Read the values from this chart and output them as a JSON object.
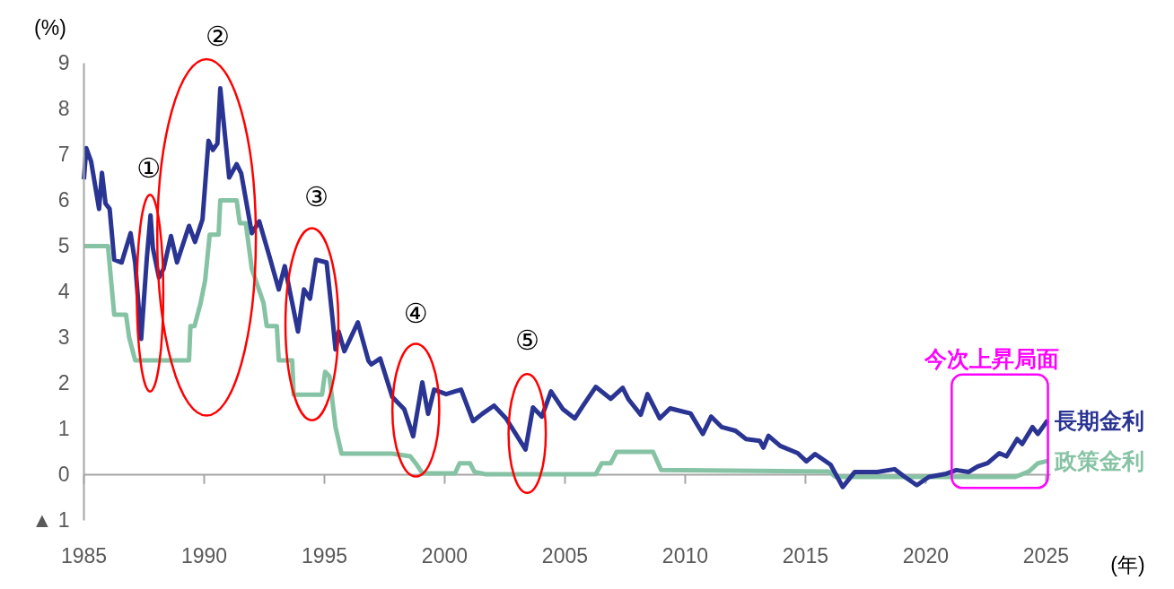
{
  "chart_data": {
    "type": "line",
    "xlabel": "(年)",
    "ylabel": "(%)",
    "xlim": [
      1985,
      2025.2
    ],
    "ylim": [
      -1,
      9
    ],
    "xticks": [
      1985,
      1990,
      1995,
      2000,
      2005,
      2010,
      2015,
      2020,
      2025
    ],
    "yticks": [
      {
        "value": -1,
        "label": "▲ 1"
      },
      0,
      1,
      2,
      3,
      4,
      5,
      6,
      7,
      8,
      9
    ],
    "grid": false,
    "legend": false,
    "ref_lines": [
      {
        "axis": "y",
        "value": 0,
        "label": null,
        "color": "#a6a6a6"
      }
    ],
    "annotations": [
      "①",
      "②",
      "③",
      "④",
      "⑤",
      "今次上昇局面"
    ],
    "series": [
      {
        "name": "長期金利",
        "color": "#2a3593",
        "x": [
          1985.0,
          1985.1,
          1985.3,
          1985.63,
          1985.75,
          1985.9,
          1986.07,
          1986.26,
          1986.57,
          1986.94,
          1987.13,
          1987.38,
          1987.62,
          1987.77,
          1987.87,
          1988.12,
          1988.31,
          1988.62,
          1988.87,
          1989.37,
          1989.62,
          1989.93,
          1990.18,
          1990.36,
          1990.55,
          1990.67,
          1991.04,
          1991.35,
          1991.54,
          1991.85,
          1991.98,
          1992.29,
          1992.72,
          1993.1,
          1993.35,
          1993.9,
          1994.15,
          1994.4,
          1994.65,
          1995.09,
          1995.34,
          1995.46,
          1995.59,
          1995.83,
          1996.39,
          1996.83,
          1996.95,
          1997.32,
          1997.82,
          1998.32,
          1998.69,
          1999.07,
          1999.31,
          1999.56,
          2000.06,
          2000.68,
          2001.18,
          2001.56,
          2002.05,
          2002.55,
          2003.36,
          2003.67,
          2004.04,
          2004.42,
          2004.92,
          2005.41,
          2005.78,
          2006.28,
          2006.9,
          2007.4,
          2007.65,
          2008.15,
          2008.43,
          2008.94,
          2009.37,
          2010.22,
          2010.73,
          2011.08,
          2011.52,
          2012.09,
          2012.53,
          2013.1,
          2013.25,
          2013.46,
          2013.95,
          2014.68,
          2015.04,
          2015.4,
          2016.04,
          2016.55,
          2017.05,
          2017.98,
          2018.7,
          2019.13,
          2019.63,
          2020.13,
          2020.85,
          2021.27,
          2021.79,
          2022.15,
          2022.57,
          2023.06,
          2023.36,
          2023.8,
          2024.01,
          2024.44,
          2024.66,
          2025.07
        ],
        "values": [
          6.46,
          7.14,
          6.85,
          5.81,
          6.6,
          5.93,
          5.81,
          4.7,
          4.64,
          5.28,
          4.64,
          2.97,
          4.76,
          5.67,
          4.95,
          4.31,
          4.5,
          5.22,
          4.64,
          5.44,
          5.09,
          5.58,
          7.3,
          7.1,
          7.24,
          8.45,
          6.5,
          6.79,
          6.59,
          5.67,
          5.28,
          5.54,
          4.76,
          4.05,
          4.56,
          3.13,
          4.05,
          3.85,
          4.7,
          4.64,
          3.39,
          2.74,
          3.13,
          2.7,
          3.33,
          2.49,
          2.41,
          2.54,
          1.7,
          1.43,
          0.84,
          2.02,
          1.33,
          1.86,
          1.76,
          1.86,
          1.17,
          1.33,
          1.51,
          1.23,
          0.55,
          1.47,
          1.27,
          1.82,
          1.43,
          1.23,
          1.53,
          1.92,
          1.66,
          1.9,
          1.64,
          1.31,
          1.76,
          1.23,
          1.45,
          1.34,
          0.89,
          1.27,
          1.04,
          0.96,
          0.78,
          0.74,
          0.59,
          0.85,
          0.63,
          0.47,
          0.29,
          0.45,
          0.22,
          -0.27,
          0.06,
          0.06,
          0.12,
          -0.05,
          -0.23,
          -0.05,
          0.02,
          0.1,
          0.06,
          0.18,
          0.25,
          0.47,
          0.4,
          0.78,
          0.67,
          1.04,
          0.89,
          1.19
        ]
      },
      {
        "name": "政策金利",
        "color": "#86c3a4",
        "x": [
          1985.0,
          1986.0,
          1986.26,
          1986.75,
          1986.88,
          1987.13,
          1989.37,
          1989.43,
          1989.6,
          1989.85,
          1990.04,
          1990.23,
          1990.6,
          1990.67,
          1991.35,
          1991.48,
          1991.73,
          1991.98,
          1992.47,
          1992.6,
          1993.02,
          1993.1,
          1993.66,
          1993.72,
          1994.9,
          1995.03,
          1995.21,
          1995.46,
          1995.71,
          1997.82,
          1998.57,
          1998.82,
          1999.07,
          2000.43,
          2000.62,
          2001.05,
          2001.24,
          2001.7,
          2006.28,
          2006.53,
          2006.9,
          2007.15,
          2008.66,
          2009.0,
          2015.97,
          2016.26,
          2023.72,
          2024.29,
          2024.66,
          2025.07
        ],
        "values": [
          5.0,
          5.0,
          3.5,
          3.5,
          3.0,
          2.5,
          2.5,
          3.25,
          3.25,
          3.75,
          4.25,
          5.25,
          5.25,
          6.0,
          6.0,
          5.5,
          5.5,
          4.5,
          3.75,
          3.25,
          3.25,
          2.5,
          2.5,
          1.75,
          1.75,
          2.25,
          2.15,
          1.04,
          0.46,
          0.46,
          0.4,
          0.23,
          0.03,
          0.03,
          0.25,
          0.25,
          0.06,
          0.01,
          0.01,
          0.25,
          0.25,
          0.5,
          0.5,
          0.1,
          0.07,
          -0.05,
          -0.05,
          0.07,
          0.25,
          0.3
        ]
      }
    ]
  }
}
